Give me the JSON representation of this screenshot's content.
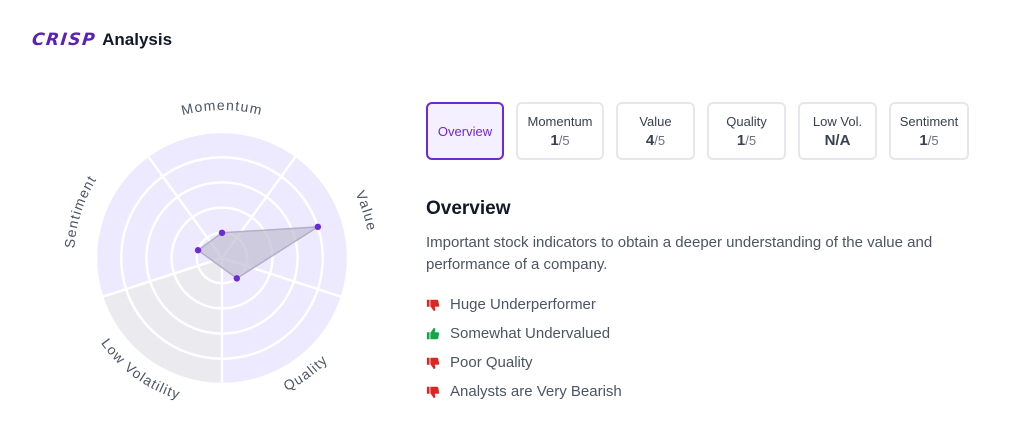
{
  "header": {
    "logo": "CRISP",
    "title": "Analysis"
  },
  "radar": {
    "axes": [
      "Momentum",
      "Value",
      "Quality",
      "Low Volatility",
      "Sentiment"
    ],
    "scores": [
      1,
      4,
      1,
      null,
      1
    ],
    "max": 5,
    "fill_color": "#ede9fe",
    "na_fill_color": "#ebebef",
    "shape_color": "#c4c0d4",
    "point_color": "#6d28d9"
  },
  "tabs": [
    {
      "label": "Overview",
      "active": true
    },
    {
      "label": "Momentum",
      "score": "1",
      "outof": "/5"
    },
    {
      "label": "Value",
      "score": "4",
      "outof": "/5"
    },
    {
      "label": "Quality",
      "score": "1",
      "outof": "/5"
    },
    {
      "label": "Low Vol.",
      "score": "N/A",
      "outof": ""
    },
    {
      "label": "Sentiment",
      "score": "1",
      "outof": "/5"
    }
  ],
  "overview": {
    "title": "Overview",
    "description": "Important stock indicators to obtain a deeper understanding of the value and performance of a company.",
    "indicators": [
      {
        "text": "Huge Underperformer",
        "sentiment": "negative",
        "icon": "thumbs-down-icon"
      },
      {
        "text": "Somewhat Undervalued",
        "sentiment": "positive",
        "icon": "thumbs-up-icon"
      },
      {
        "text": "Poor Quality",
        "sentiment": "negative",
        "icon": "thumbs-down-icon"
      },
      {
        "text": "Analysts are Very Bearish",
        "sentiment": "negative",
        "icon": "thumbs-down-icon"
      }
    ],
    "colors": {
      "negative": "#dc2626",
      "positive": "#16a34a"
    }
  }
}
